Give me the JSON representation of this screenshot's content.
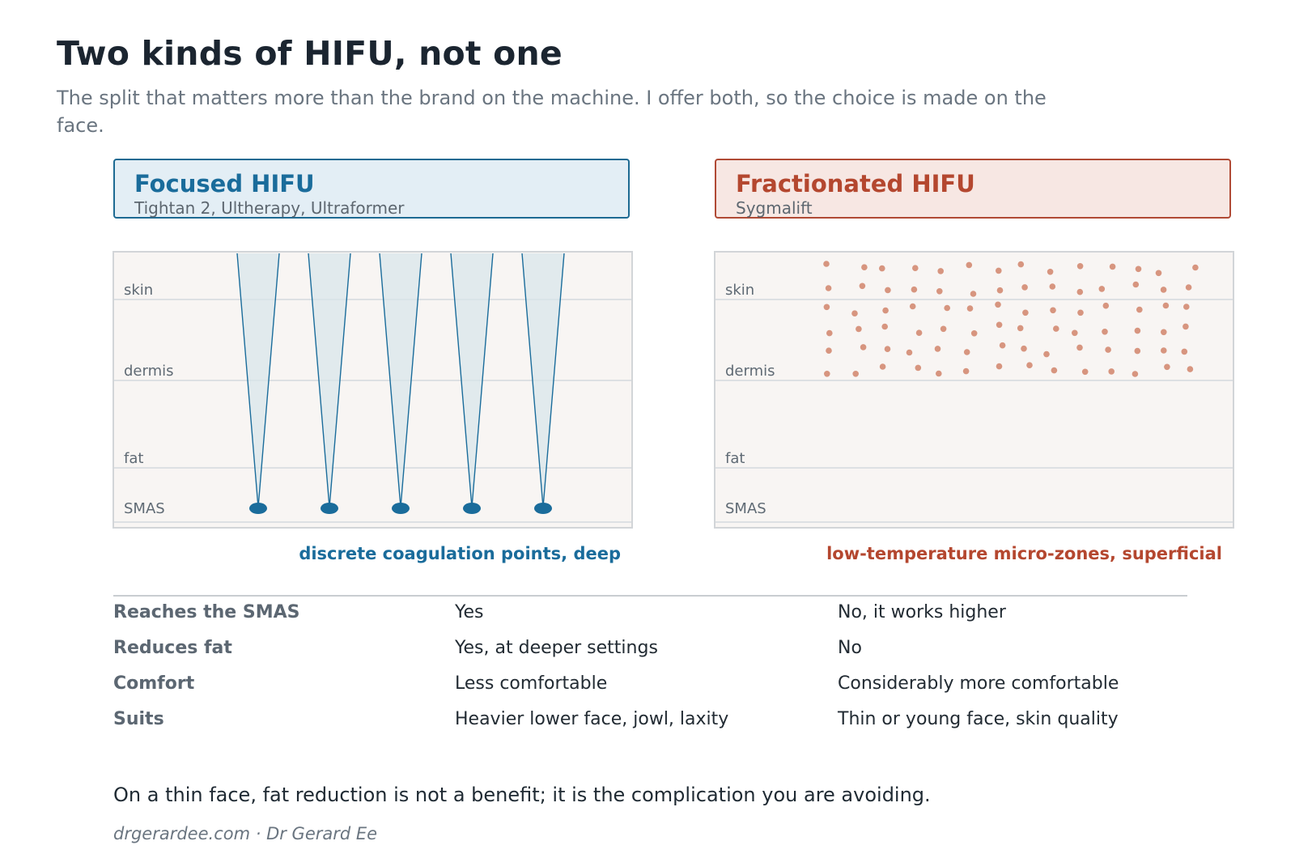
{
  "title": "Two kinds of HIFU, not one",
  "subtitle": "The split that matters more than the brand on the machine. I offer both, so the choice is made on the face.",
  "colors": {
    "focused": "#1a6c9b",
    "fractionated": "#b4472f",
    "dots": "#d7957f",
    "panel_bg": "#f8f5f3"
  },
  "layers": [
    "skin",
    "dermis",
    "fat",
    "SMAS"
  ],
  "focused": {
    "name": "Focused HIFU",
    "brands": "Tightan 2, Ultherapy, Ultraformer",
    "caption": "discrete coagulation points, deep",
    "beam_count": 5
  },
  "fractionated": {
    "name": "Fractionated HIFU",
    "brands": "Sygmalift",
    "caption": "low-temperature micro-zones, superficial"
  },
  "comparison": [
    {
      "label": "Reaches the SMAS",
      "focused": "Yes",
      "fractionated": "No, it works higher"
    },
    {
      "label": "Reduces fat",
      "focused": "Yes, at deeper settings",
      "fractionated": "No"
    },
    {
      "label": "Comfort",
      "focused": "Less comfortable",
      "fractionated": "Considerably more comfortable"
    },
    {
      "label": "Suits",
      "focused": "Heavier lower face, jowl, laxity",
      "fractionated": "Thin or young face, skin quality"
    }
  ],
  "closing": "On a thin face, fat reduction is not a benefit; it is the complication you are avoiding.",
  "credit": "drgerardee.com · Dr Gerard Ee"
}
